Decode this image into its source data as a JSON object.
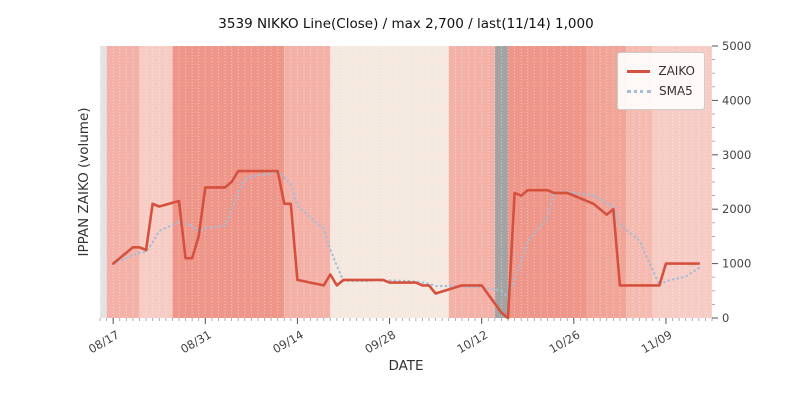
{
  "chart_data": {
    "type": "line",
    "title": "3539 NIKKO Line(Close) / max 2,700 / last(11/14) 1,000",
    "xlabel": "DATE",
    "ylabel": "IPPAN ZAIKO (volume)",
    "ylim": [
      0,
      5000
    ],
    "yticks": [
      0,
      1000,
      2000,
      3000,
      4000,
      5000
    ],
    "xticks": [
      "08/17",
      "08/31",
      "09/14",
      "09/28",
      "10/12",
      "10/26",
      "11/09"
    ],
    "x_range": [
      "08/15",
      "11/16"
    ],
    "plot_bg": "#f3ece2",
    "grid": "faint white dotted vertical per day",
    "legend_position": "upper right",
    "max_value": 2700,
    "last_date": "11/14",
    "last_value": 1000,
    "series": [
      {
        "name": "ZAIKO",
        "color": "#d6503e",
        "style": "solid",
        "dates": [
          "08/17",
          "08/20",
          "08/21",
          "08/22",
          "08/23",
          "08/24",
          "08/27",
          "08/28",
          "08/29",
          "08/30",
          "08/31",
          "09/03",
          "09/04",
          "09/05",
          "09/06",
          "09/07",
          "09/10",
          "09/11",
          "09/12",
          "09/13",
          "09/14",
          "09/18",
          "09/19",
          "09/20",
          "09/21",
          "09/25",
          "09/26",
          "09/27",
          "09/28",
          "10/01",
          "10/02",
          "10/03",
          "10/04",
          "10/05",
          "10/09",
          "10/10",
          "10/11",
          "10/12",
          "10/15",
          "10/16",
          "10/17",
          "10/18",
          "10/19",
          "10/22",
          "10/23",
          "10/24",
          "10/25",
          "10/26",
          "10/29",
          "10/30",
          "10/31",
          "11/01",
          "11/02",
          "11/05",
          "11/06",
          "11/07",
          "11/08",
          "11/09",
          "11/12",
          "11/13",
          "11/14"
        ],
        "values": [
          1000,
          1300,
          1300,
          1250,
          2100,
          2050,
          2150,
          1100,
          1100,
          1500,
          2400,
          2400,
          2500,
          2700,
          2700,
          2700,
          2700,
          2700,
          2100,
          2100,
          700,
          600,
          800,
          600,
          700,
          700,
          700,
          700,
          650,
          650,
          650,
          600,
          600,
          450,
          600,
          600,
          600,
          600,
          100,
          0,
          2300,
          2250,
          2350,
          2350,
          2300,
          2300,
          2300,
          2250,
          2100,
          2000,
          1900,
          2000,
          600,
          600,
          600,
          600,
          600,
          1000,
          1000,
          1000,
          1000
        ]
      },
      {
        "name": "SMA5",
        "color": "#a4bcd8",
        "style": "dotted",
        "derived_from": "ZAIKO 5-period trailing moving average"
      }
    ],
    "background_bands": [
      {
        "from": "08/15",
        "to": "08/16",
        "color": "#e3e3e3"
      },
      {
        "from": "08/16",
        "to": "08/21",
        "color": "#f3b1a8"
      },
      {
        "from": "08/21",
        "to": "08/26",
        "color": "#f7ccc4"
      },
      {
        "from": "08/26",
        "to": "09/12",
        "color": "#ee9689"
      },
      {
        "from": "09/12",
        "to": "09/19",
        "color": "#f3b1a8"
      },
      {
        "from": "09/19",
        "to": "10/07",
        "color": "#f5e9df"
      },
      {
        "from": "10/07",
        "to": "10/14",
        "color": "#f3b1a8"
      },
      {
        "from": "10/14",
        "to": "10/16",
        "color": "#a3a3a3"
      },
      {
        "from": "10/16",
        "to": "10/28",
        "color": "#ee9689"
      },
      {
        "from": "10/28",
        "to": "11/03",
        "color": "#f1a599"
      },
      {
        "from": "11/03",
        "to": "11/07",
        "color": "#f5bab0"
      },
      {
        "from": "11/07",
        "to": "11/16",
        "color": "#f7ccc4"
      }
    ]
  },
  "legend": {
    "items": [
      {
        "label": "ZAIKO"
      },
      {
        "label": "SMA5"
      }
    ]
  }
}
